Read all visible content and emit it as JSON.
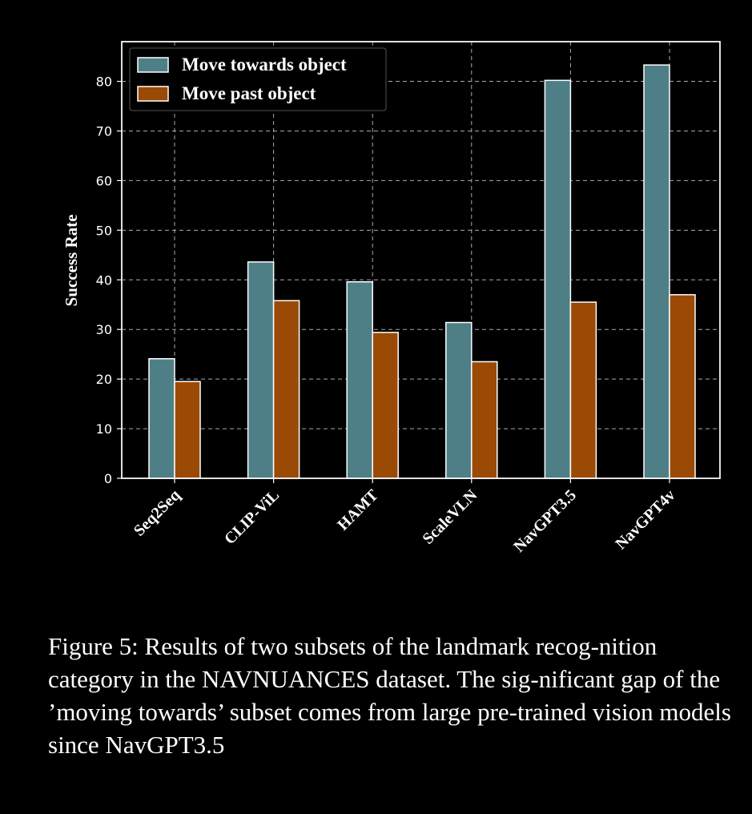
{
  "chart_data": {
    "type": "bar",
    "title": "",
    "xlabel": "",
    "ylabel": "Success Rate",
    "ylim": [
      0,
      88
    ],
    "yticks": [
      0,
      10,
      20,
      30,
      40,
      50,
      60,
      70,
      80
    ],
    "grid": true,
    "legend_position": "top-left",
    "categories": [
      "Seq2Seq",
      "CLIP-ViL",
      "HAMT",
      "ScaleVLN",
      "NavGPT3.5",
      "NavGPT4v"
    ],
    "series": [
      {
        "name": "Move towards object",
        "color": "#4e7f87",
        "values": [
          24.1,
          43.6,
          39.6,
          31.4,
          80.2,
          83.3
        ]
      },
      {
        "name": "Move past object",
        "color": "#9a4a05",
        "values": [
          19.5,
          35.8,
          29.4,
          23.5,
          35.5,
          37.0
        ]
      }
    ]
  },
  "caption": {
    "prefix": "Figure 5: Results of two subsets of the landmark recog-nition category in the ",
    "dataset_first": "N",
    "dataset_sc1": "AV",
    "dataset_mid": "N",
    "dataset_sc2": "UANCES",
    "suffix": " dataset. The sig-nificant gap of the ’moving towards’ subset comes from large pre-trained vision models since NavGPT3.5"
  }
}
